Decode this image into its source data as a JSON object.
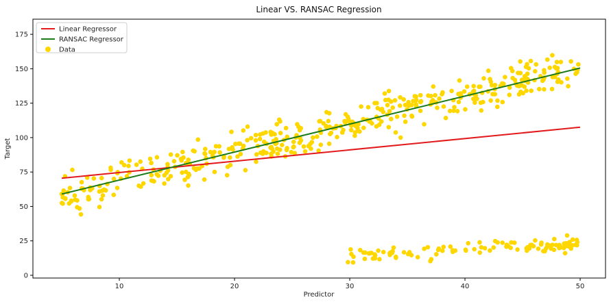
{
  "chart_data": {
    "type": "scatter",
    "title": "Linear VS. RANSAC Regression",
    "xlabel": "Predictor",
    "ylabel": "Target",
    "xlim": [
      2.5,
      52.2
    ],
    "ylim": [
      -2,
      186
    ],
    "xticks": [
      10,
      20,
      30,
      40,
      50
    ],
    "yticks": [
      0,
      25,
      50,
      75,
      100,
      125,
      150,
      175
    ],
    "grid": false,
    "legend_position": "top-left",
    "series": [
      {
        "name": "Linear Regressor",
        "kind": "line",
        "color": "#e31a1c",
        "x": [
          5,
          50
        ],
        "y": [
          70.5,
          107.5
        ]
      },
      {
        "name": "RANSAC Regressor",
        "kind": "line",
        "color": "#1a7a1a",
        "x": [
          5,
          50
        ],
        "y": [
          59,
          150.5
        ]
      },
      {
        "name": "Data",
        "kind": "scatter",
        "color": "#ffd700",
        "inliers": {
          "x_min": 5,
          "x_max": 50,
          "slope": 2.03,
          "intercept": 48.8,
          "spread": 11
        },
        "outliers": {
          "x_min": 29.8,
          "x_max": 50,
          "y_min": 8,
          "y_max": 34
        }
      }
    ]
  }
}
